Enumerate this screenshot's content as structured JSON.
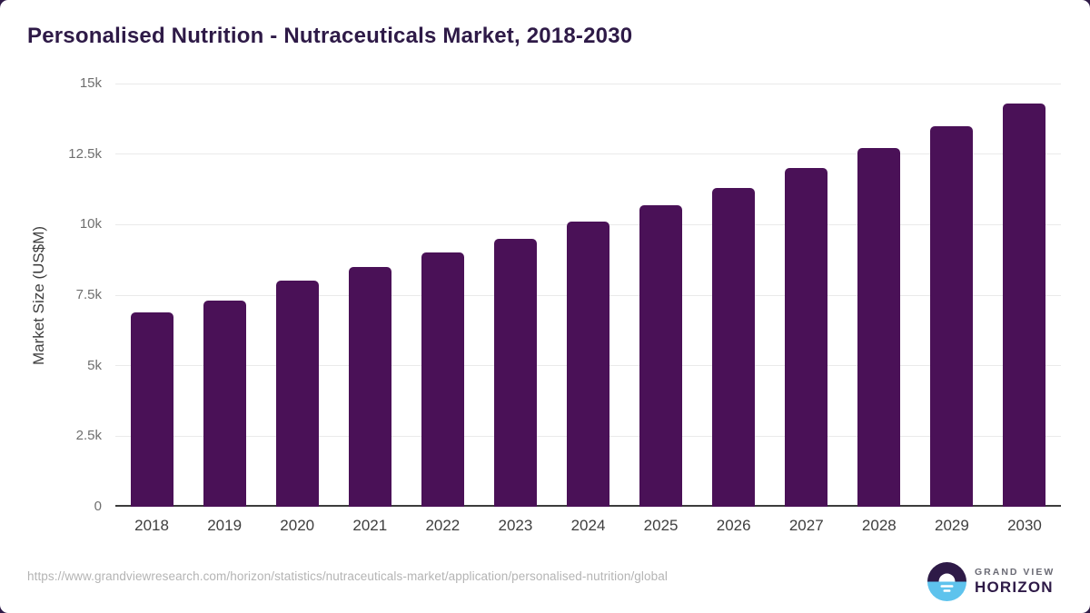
{
  "chart": {
    "title": "Personalised Nutrition - Nutraceuticals Market, 2018-2030"
  },
  "chart_data": {
    "type": "bar",
    "categories": [
      "2018",
      "2019",
      "2020",
      "2021",
      "2022",
      "2023",
      "2024",
      "2025",
      "2026",
      "2027",
      "2028",
      "2029",
      "2030"
    ],
    "values": [
      6900,
      7300,
      8000,
      8500,
      9000,
      9500,
      10100,
      10700,
      11300,
      12000,
      12700,
      13500,
      14300
    ],
    "title": "Personalised Nutrition - Nutraceuticals Market, 2018-2030",
    "xlabel": "",
    "ylabel": "Market Size (US$M)",
    "ylim": [
      0,
      15000
    ],
    "yticks": [
      {
        "value": 0,
        "label": "0"
      },
      {
        "value": 2500,
        "label": "2.5k"
      },
      {
        "value": 5000,
        "label": "5k"
      },
      {
        "value": 7500,
        "label": "7.5k"
      },
      {
        "value": 10000,
        "label": "10k"
      },
      {
        "value": 12500,
        "label": "12.5k"
      },
      {
        "value": 15000,
        "label": "15k"
      }
    ],
    "grid": true,
    "legend": "none",
    "theme": {
      "bar_color": "#4a1157",
      "title_color": "#2e1a47",
      "gridline_color": "#eaeaea",
      "axis_color": "#3c3c3c",
      "corner_border_color": "#2e1a47"
    }
  },
  "footer": {
    "source_url": "https://www.grandviewresearch.com/horizon/statistics/nutraceuticals-market/application/personalised-nutrition/global",
    "logo": {
      "line1": "GRAND VIEW",
      "line2": "HORIZON",
      "icon": "horizon-sun-over-water-icon",
      "icon_dark_color": "#2e1a47",
      "icon_blue_color": "#5ec3ed"
    }
  }
}
